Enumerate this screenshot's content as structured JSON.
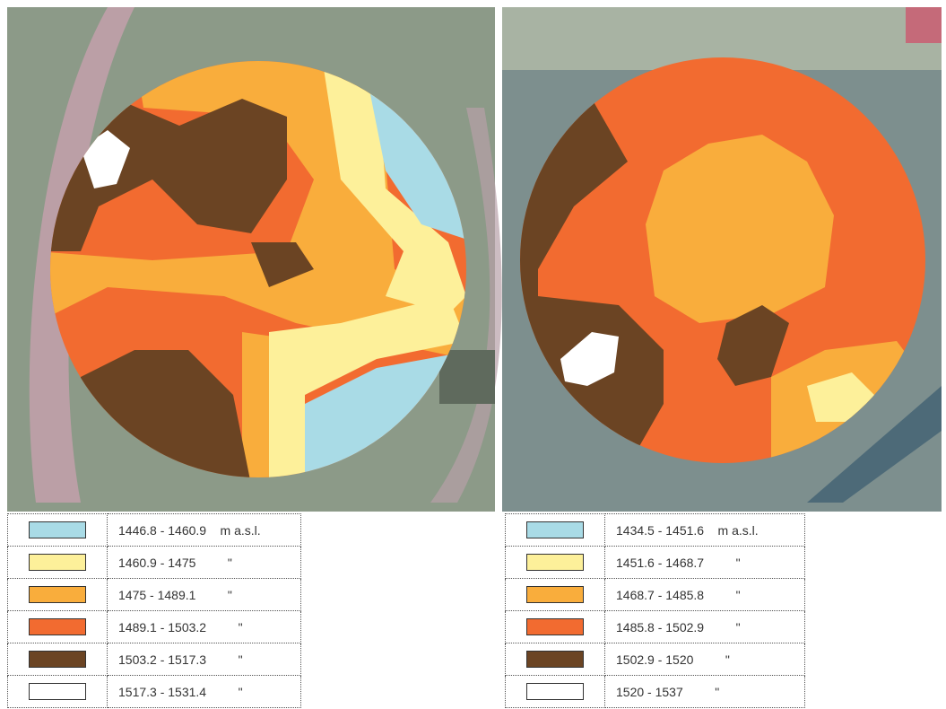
{
  "panels": [
    {
      "legend": [
        {
          "color": "#a9dbe6",
          "range": "1446.8 - 1460.9",
          "unit": "m a.s.l."
        },
        {
          "color": "#fdf09a",
          "range": "1460.9 - 1475",
          "unit": "\""
        },
        {
          "color": "#f9ad3c",
          "range": "1475 - 1489.1",
          "unit": "\""
        },
        {
          "color": "#f26b30",
          "range": "1489.1 - 1503.2",
          "unit": "\""
        },
        {
          "color": "#6b4423",
          "range": "1503.2 - 1517.3",
          "unit": "\""
        },
        {
          "color": "#ffffff",
          "range": "1517.3 - 1531.4",
          "unit": "\""
        }
      ]
    },
    {
      "legend": [
        {
          "color": "#a9dbe6",
          "range": "1434.5 - 1451.6",
          "unit": "m a.s.l."
        },
        {
          "color": "#fdf09a",
          "range": "1451.6 - 1468.7",
          "unit": "\""
        },
        {
          "color": "#f9ad3c",
          "range": "1468.7 - 1485.8",
          "unit": "\""
        },
        {
          "color": "#f26b30",
          "range": "1485.8 - 1502.9",
          "unit": "\""
        },
        {
          "color": "#6b4423",
          "range": "1502.9 - 1520",
          "unit": "\""
        },
        {
          "color": "#ffffff",
          "range": "1520 - 1537",
          "unit": "\""
        }
      ]
    }
  ]
}
